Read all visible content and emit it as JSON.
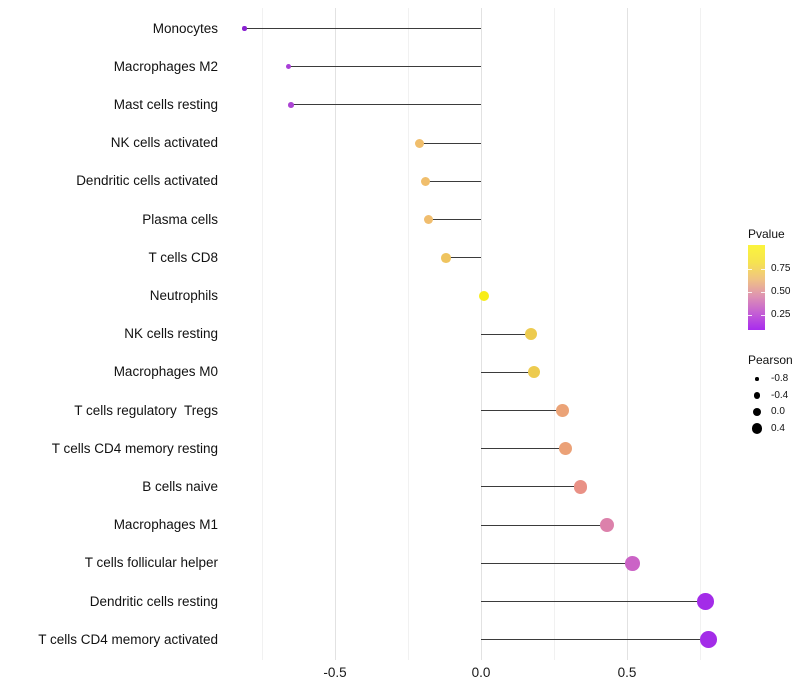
{
  "chart_data": {
    "type": "scatter",
    "variant": "lollipop",
    "orientation": "horizontal",
    "title": "",
    "xlabel": "",
    "ylabel": "",
    "grid": "vertical-only",
    "xlim": [
      -0.89,
      0.87
    ],
    "categories": [
      "Monocytes",
      "Macrophages M2",
      "Mast cells resting",
      "NK cells activated",
      "Dendritic cells activated",
      "Plasma cells",
      "T cells CD8",
      "Neutrophils",
      "NK cells resting",
      "Macrophages M0",
      "T cells regulatory  Tregs",
      "T cells CD4 memory resting",
      "B cells naive",
      "Macrophages M1",
      "T cells follicular helper",
      "Dendritic cells resting",
      "T cells CD4 memory activated"
    ],
    "series": [
      {
        "name": "Pearson",
        "values": [
          -0.81,
          -0.66,
          -0.65,
          -0.21,
          -0.19,
          -0.18,
          -0.12,
          0.01,
          0.17,
          0.18,
          0.28,
          0.29,
          0.34,
          0.43,
          0.52,
          0.77,
          0.78
        ]
      }
    ],
    "point_colors": [
      "#8a22d1",
      "#a93fd8",
      "#ac44d4",
      "#f0be6c",
      "#f0be6c",
      "#f0bd6e",
      "#efc45f",
      "#f8ed18",
      "#edcb4f",
      "#edcb4f",
      "#eba377",
      "#eba177",
      "#e99186",
      "#dc81ab",
      "#cb63c6",
      "#a32ce8",
      "#a32ce8"
    ],
    "stem_color": "#3b3b3b",
    "xticks": [
      {
        "value": -0.5,
        "label": "-0.5"
      },
      {
        "value": 0.0,
        "label": "0.0"
      },
      {
        "value": 0.5,
        "label": "0.5"
      }
    ],
    "gridlines": [
      {
        "value": -0.75,
        "major": false
      },
      {
        "value": -0.5,
        "major": true
      },
      {
        "value": -0.25,
        "major": false
      },
      {
        "value": 0.0,
        "major": true
      },
      {
        "value": 0.25,
        "major": false
      },
      {
        "value": 0.5,
        "major": true
      },
      {
        "value": 0.75,
        "major": false
      }
    ],
    "legend": {
      "position": "right",
      "pvalue": {
        "title": "Pvalue",
        "gradient_bottom_to_top": [
          "#a82bee",
          "#c45fd4",
          "#de93b2",
          "#f0c383",
          "#f6e44f",
          "#fbf43c"
        ],
        "ticks": [
          {
            "value": 0.75,
            "label": "0.75"
          },
          {
            "value": 0.5,
            "label": "0.50"
          },
          {
            "value": 0.25,
            "label": "0.25"
          }
        ]
      },
      "pearson": {
        "title": "Pearson",
        "dot_color": "#000000",
        "items": [
          {
            "label": "-0.8",
            "radius": 1.8
          },
          {
            "label": "-0.4",
            "radius": 3.4
          },
          {
            "label": "0.0",
            "radius": 4.4
          },
          {
            "label": "0.4",
            "radius": 5.4
          }
        ]
      }
    }
  }
}
